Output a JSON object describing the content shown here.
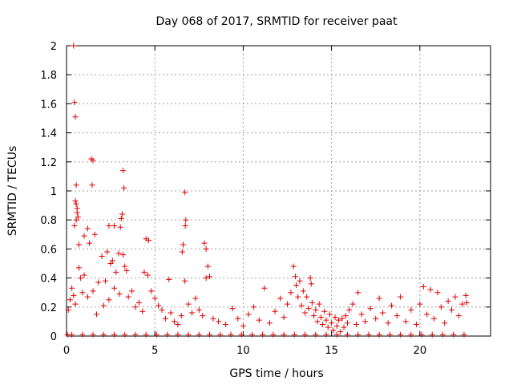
{
  "chart_data": {
    "type": "scatter",
    "title": "Day 068 of 2017, SRMTID for receiver paat",
    "xlabel": "GPS time / hours",
    "ylabel": "SRMTID / TECUs",
    "xlim": [
      0,
      24
    ],
    "ylim": [
      0,
      2
    ],
    "grid": true,
    "marker": "+",
    "marker_color": "#e00000",
    "x_ticks": [
      0,
      5,
      10,
      15,
      20
    ],
    "x_tick_labels": [
      "0",
      "5",
      "10",
      "15",
      "20"
    ],
    "y_ticks": [
      0,
      0.2,
      0.4,
      0.6,
      0.8,
      1,
      1.2,
      1.4,
      1.6,
      1.8,
      2
    ],
    "y_tick_labels": [
      "0",
      "0.2",
      "0.4",
      "0.6",
      "0.8",
      "1",
      "1.2",
      "1.4",
      "1.6",
      "1.8",
      "2"
    ],
    "series": [
      {
        "name": "SRMTID",
        "points": [
          [
            0.4,
            2.0
          ],
          [
            0.45,
            1.61
          ],
          [
            0.5,
            1.51
          ],
          [
            1.4,
            1.22
          ],
          [
            1.5,
            1.21
          ],
          [
            3.2,
            1.14
          ],
          [
            3.25,
            1.02
          ],
          [
            1.45,
            1.04
          ],
          [
            0.55,
            1.04
          ],
          [
            6.7,
            0.99
          ],
          [
            0.5,
            0.93
          ],
          [
            0.55,
            0.91
          ],
          [
            0.6,
            0.88
          ],
          [
            0.6,
            0.85
          ],
          [
            3.15,
            0.84
          ],
          [
            0.65,
            0.82
          ],
          [
            3.1,
            0.81
          ],
          [
            0.55,
            0.8
          ],
          [
            6.75,
            0.8
          ],
          [
            6.72,
            0.76
          ],
          [
            0.45,
            0.76
          ],
          [
            3.05,
            0.75
          ],
          [
            2.4,
            0.76
          ],
          [
            2.7,
            0.76
          ],
          [
            1.2,
            0.74
          ],
          [
            1.0,
            0.69
          ],
          [
            1.6,
            0.7
          ],
          [
            4.5,
            0.67
          ],
          [
            4.65,
            0.66
          ],
          [
            7.8,
            0.64
          ],
          [
            6.6,
            0.63
          ],
          [
            7.9,
            0.6
          ],
          [
            0.7,
            0.63
          ],
          [
            1.3,
            0.64
          ],
          [
            2.3,
            0.58
          ],
          [
            2.0,
            0.55
          ],
          [
            2.95,
            0.57
          ],
          [
            3.2,
            0.56
          ],
          [
            6.55,
            0.58
          ],
          [
            8.0,
            0.48
          ],
          [
            2.5,
            0.5
          ],
          [
            2.6,
            0.52
          ],
          [
            2.8,
            0.44
          ],
          [
            3.3,
            0.48
          ],
          [
            3.4,
            0.45
          ],
          [
            0.7,
            0.47
          ],
          [
            0.8,
            0.4
          ],
          [
            1.0,
            0.42
          ],
          [
            1.8,
            0.37
          ],
          [
            2.2,
            0.38
          ],
          [
            4.4,
            0.44
          ],
          [
            4.6,
            0.42
          ],
          [
            5.8,
            0.39
          ],
          [
            6.7,
            0.38
          ],
          [
            7.9,
            0.4
          ],
          [
            8.1,
            0.41
          ],
          [
            0.3,
            0.33
          ],
          [
            0.4,
            0.28
          ],
          [
            0.5,
            0.22
          ],
          [
            0.2,
            0.25
          ],
          [
            0.1,
            0.18
          ],
          [
            0.9,
            0.3
          ],
          [
            1.2,
            0.27
          ],
          [
            1.5,
            0.31
          ],
          [
            1.7,
            0.15
          ],
          [
            2.1,
            0.21
          ],
          [
            2.4,
            0.25
          ],
          [
            2.7,
            0.33
          ],
          [
            3.0,
            0.29
          ],
          [
            3.5,
            0.27
          ],
          [
            3.7,
            0.31
          ],
          [
            3.9,
            0.2
          ],
          [
            4.1,
            0.23
          ],
          [
            4.3,
            0.17
          ],
          [
            4.8,
            0.31
          ],
          [
            5.0,
            0.26
          ],
          [
            5.2,
            0.21
          ],
          [
            5.4,
            0.18
          ],
          [
            5.6,
            0.12
          ],
          [
            5.9,
            0.16
          ],
          [
            6.1,
            0.1
          ],
          [
            6.3,
            0.08
          ],
          [
            6.5,
            0.14
          ],
          [
            6.9,
            0.22
          ],
          [
            7.1,
            0.16
          ],
          [
            7.3,
            0.26
          ],
          [
            7.5,
            0.18
          ],
          [
            7.7,
            0.14
          ],
          [
            8.3,
            0.12
          ],
          [
            8.6,
            0.1
          ],
          [
            9.0,
            0.08
          ],
          [
            9.4,
            0.19
          ],
          [
            9.7,
            0.12
          ],
          [
            10.0,
            0.07
          ],
          [
            10.3,
            0.15
          ],
          [
            10.6,
            0.2
          ],
          [
            10.9,
            0.11
          ],
          [
            11.2,
            0.33
          ],
          [
            11.5,
            0.09
          ],
          [
            11.8,
            0.17
          ],
          [
            12.1,
            0.26
          ],
          [
            12.3,
            0.13
          ],
          [
            12.5,
            0.22
          ],
          [
            12.7,
            0.3
          ],
          [
            12.85,
            0.48
          ],
          [
            12.95,
            0.41
          ],
          [
            13.0,
            0.35
          ],
          [
            13.1,
            0.27
          ],
          [
            13.2,
            0.38
          ],
          [
            13.3,
            0.21
          ],
          [
            13.4,
            0.31
          ],
          [
            13.5,
            0.16
          ],
          [
            13.6,
            0.27
          ],
          [
            13.7,
            0.19
          ],
          [
            13.8,
            0.4
          ],
          [
            13.85,
            0.36
          ],
          [
            13.9,
            0.23
          ],
          [
            14.0,
            0.14
          ],
          [
            14.1,
            0.18
          ],
          [
            14.2,
            0.1
          ],
          [
            14.3,
            0.22
          ],
          [
            14.4,
            0.13
          ],
          [
            14.5,
            0.08
          ],
          [
            14.6,
            0.17
          ],
          [
            14.7,
            0.11
          ],
          [
            14.8,
            0.06
          ],
          [
            14.9,
            0.15
          ],
          [
            15.0,
            0.09
          ],
          [
            15.1,
            0.04
          ],
          [
            15.2,
            0.13
          ],
          [
            15.3,
            0.07
          ],
          [
            15.4,
            0.11
          ],
          [
            15.5,
            0.03
          ],
          [
            15.6,
            0.12
          ],
          [
            15.7,
            0.06
          ],
          [
            15.8,
            0.14
          ],
          [
            15.9,
            0.09
          ],
          [
            16.0,
            0.18
          ],
          [
            16.2,
            0.22
          ],
          [
            16.4,
            0.08
          ],
          [
            16.5,
            0.3
          ],
          [
            16.7,
            0.15
          ],
          [
            16.9,
            0.1
          ],
          [
            17.2,
            0.19
          ],
          [
            17.5,
            0.12
          ],
          [
            17.7,
            0.26
          ],
          [
            17.9,
            0.16
          ],
          [
            18.2,
            0.09
          ],
          [
            18.4,
            0.21
          ],
          [
            18.7,
            0.14
          ],
          [
            18.9,
            0.27
          ],
          [
            19.2,
            0.1
          ],
          [
            19.5,
            0.18
          ],
          [
            19.8,
            0.08
          ],
          [
            20.0,
            0.22
          ],
          [
            20.2,
            0.34
          ],
          [
            20.4,
            0.15
          ],
          [
            20.6,
            0.32
          ],
          [
            20.8,
            0.12
          ],
          [
            21.0,
            0.3
          ],
          [
            21.2,
            0.2
          ],
          [
            21.4,
            0.09
          ],
          [
            21.6,
            0.24
          ],
          [
            21.8,
            0.18
          ],
          [
            22.0,
            0.27
          ],
          [
            22.2,
            0.14
          ],
          [
            22.4,
            0.22
          ],
          [
            22.6,
            0.28
          ],
          [
            22.65,
            0.23
          ],
          [
            0.05,
            0.01
          ],
          [
            0.3,
            0.01
          ],
          [
            0.9,
            0.01
          ],
          [
            1.5,
            0.01
          ],
          [
            2.1,
            0.01
          ],
          [
            2.7,
            0.01
          ],
          [
            3.3,
            0.01
          ],
          [
            3.9,
            0.01
          ],
          [
            4.5,
            0.01
          ],
          [
            5.1,
            0.01
          ],
          [
            5.7,
            0.01
          ],
          [
            6.3,
            0.01
          ],
          [
            6.9,
            0.01
          ],
          [
            7.5,
            0.01
          ],
          [
            8.1,
            0.01
          ],
          [
            8.7,
            0.01
          ],
          [
            9.3,
            0.01
          ],
          [
            9.9,
            0.01
          ],
          [
            10.5,
            0.01
          ],
          [
            11.1,
            0.01
          ],
          [
            11.7,
            0.01
          ],
          [
            12.3,
            0.01
          ],
          [
            12.9,
            0.01
          ],
          [
            13.5,
            0.01
          ],
          [
            14.1,
            0.01
          ],
          [
            14.7,
            0.01
          ],
          [
            15.3,
            0.01
          ],
          [
            15.9,
            0.01
          ],
          [
            16.5,
            0.01
          ],
          [
            17.1,
            0.01
          ],
          [
            17.7,
            0.01
          ],
          [
            18.3,
            0.01
          ],
          [
            18.9,
            0.01
          ],
          [
            19.5,
            0.01
          ],
          [
            20.1,
            0.01
          ],
          [
            20.7,
            0.01
          ],
          [
            21.3,
            0.01
          ],
          [
            21.9,
            0.01
          ],
          [
            22.5,
            0.01
          ]
        ]
      }
    ]
  }
}
